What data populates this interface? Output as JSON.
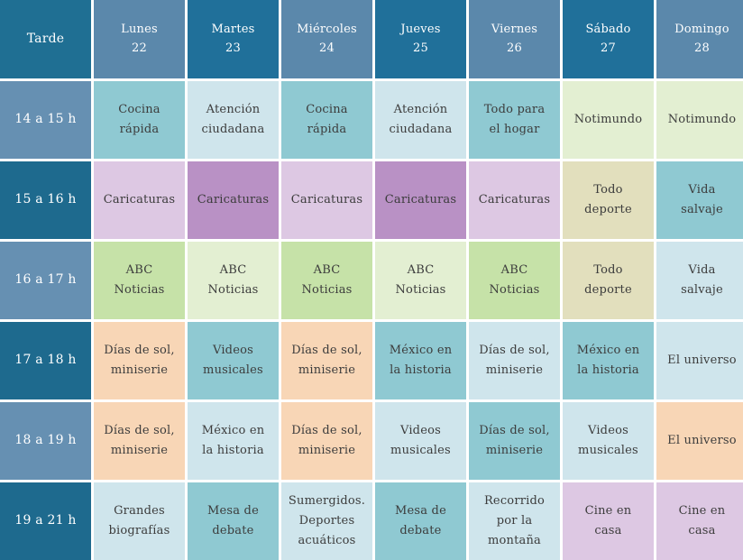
{
  "header": {
    "corner": "Tarde",
    "days": [
      {
        "name": "Lunes",
        "date": "22"
      },
      {
        "name": "Martes",
        "date": "23"
      },
      {
        "name": "Miércoles",
        "date": "24"
      },
      {
        "name": "Jueves",
        "date": "25"
      },
      {
        "name": "Viernes",
        "date": "26"
      },
      {
        "name": "Sábado",
        "date": "27"
      },
      {
        "name": "Domingo",
        "date": "28"
      }
    ]
  },
  "rows": [
    {
      "time": "14 a 15 h",
      "cells": [
        "Cocina\nrápida",
        "Atención\nciudadana",
        "Cocina\nrápida",
        "Atención\nciudadana",
        "Todo    para\nel    hogar",
        "Notimundo",
        "Notimundo"
      ]
    },
    {
      "time": "15 a 16 h",
      "cells": [
        "Caricaturas",
        "Caricaturas",
        "Caricaturas",
        "Caricaturas",
        "Caricaturas",
        "Todo\ndeporte",
        "Vida\nsalvaje"
      ]
    },
    {
      "time": "16 a 17 h",
      "cells": [
        "ABC\nNoticias",
        "ABC\nNoticias",
        "ABC\nNoticias",
        "ABC\nNoticias",
        "ABC\nNoticias",
        "Todo\ndeporte",
        "Vida\nsalvaje"
      ]
    },
    {
      "time": "17 a 18 h",
      "cells": [
        "Días  de  sol,\nminiserie",
        "Videos\nmusicales",
        "Días  de  sol,\nminiserie",
        "México    en\nla   historia",
        "Días  de  sol,\nminiserie",
        "México    en\nla   historia",
        "El      universo"
      ]
    },
    {
      "time": "18 a 19 h",
      "cells": [
        "Días  de  sol,\nminiserie",
        "México    en\nla   historia",
        "Días  de  sol,\nminiserie",
        "Videos\nmusicales",
        "Días  de  sol,\nminiserie",
        "Videos\nmusicales",
        "El      universo"
      ]
    },
    {
      "time": "19 a 21 h",
      "cells": [
        "Grandes\nbiografías",
        "Mesa    de\ndebate",
        "Sumergidos.\nDeportes\nacuáticos",
        "Mesa    de\ndebate",
        "Recorrido\npor   la\nmontaña",
        "Cine    en\ncasa",
        "Cine    en\ncasa"
      ]
    }
  ],
  "colors": {
    "header_alt_a": "#5b88ab",
    "header_alt_b": "#20709a",
    "time_column": "#1e6a8e",
    "teal": "#8fc9d2",
    "ice": "#cfe5ec",
    "mint": "#e3efd2",
    "lilac": "#ddc8e3",
    "purple": "#b991c5",
    "khaki": "#e2dfbd",
    "green": "#c6e2a8",
    "peach": "#f8d6b6"
  }
}
